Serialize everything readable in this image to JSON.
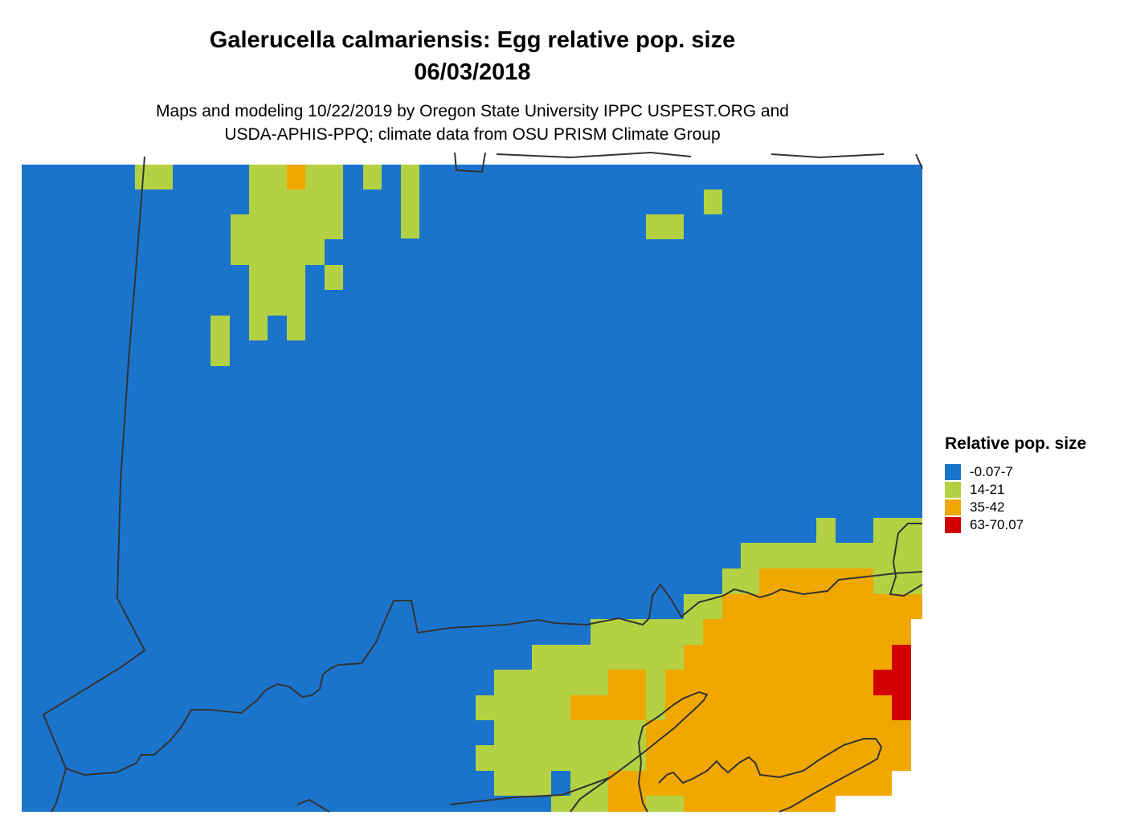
{
  "title": "Galerucella calmariensis: Egg relative pop. size",
  "date": "06/03/2018",
  "subtitle_line1": "Maps and modeling 10/22/2019 by Oregon State University IPPC USPEST.ORG and",
  "subtitle_line2": "USDA-APHIS-PPQ; climate data from OSU PRISM Climate Group",
  "legend": {
    "title": "Relative pop. size",
    "items": [
      {
        "label": "-0.07-7",
        "color": "#1b74cc"
      },
      {
        "label": "14-21",
        "color": "#b3d143"
      },
      {
        "label": "35-42",
        "color": "#f0a800"
      },
      {
        "label": "63-70.07",
        "color": "#d00000"
      }
    ]
  },
  "colors": {
    "background_class": "#1b74cc",
    "boundary_lines": "#333333"
  }
}
